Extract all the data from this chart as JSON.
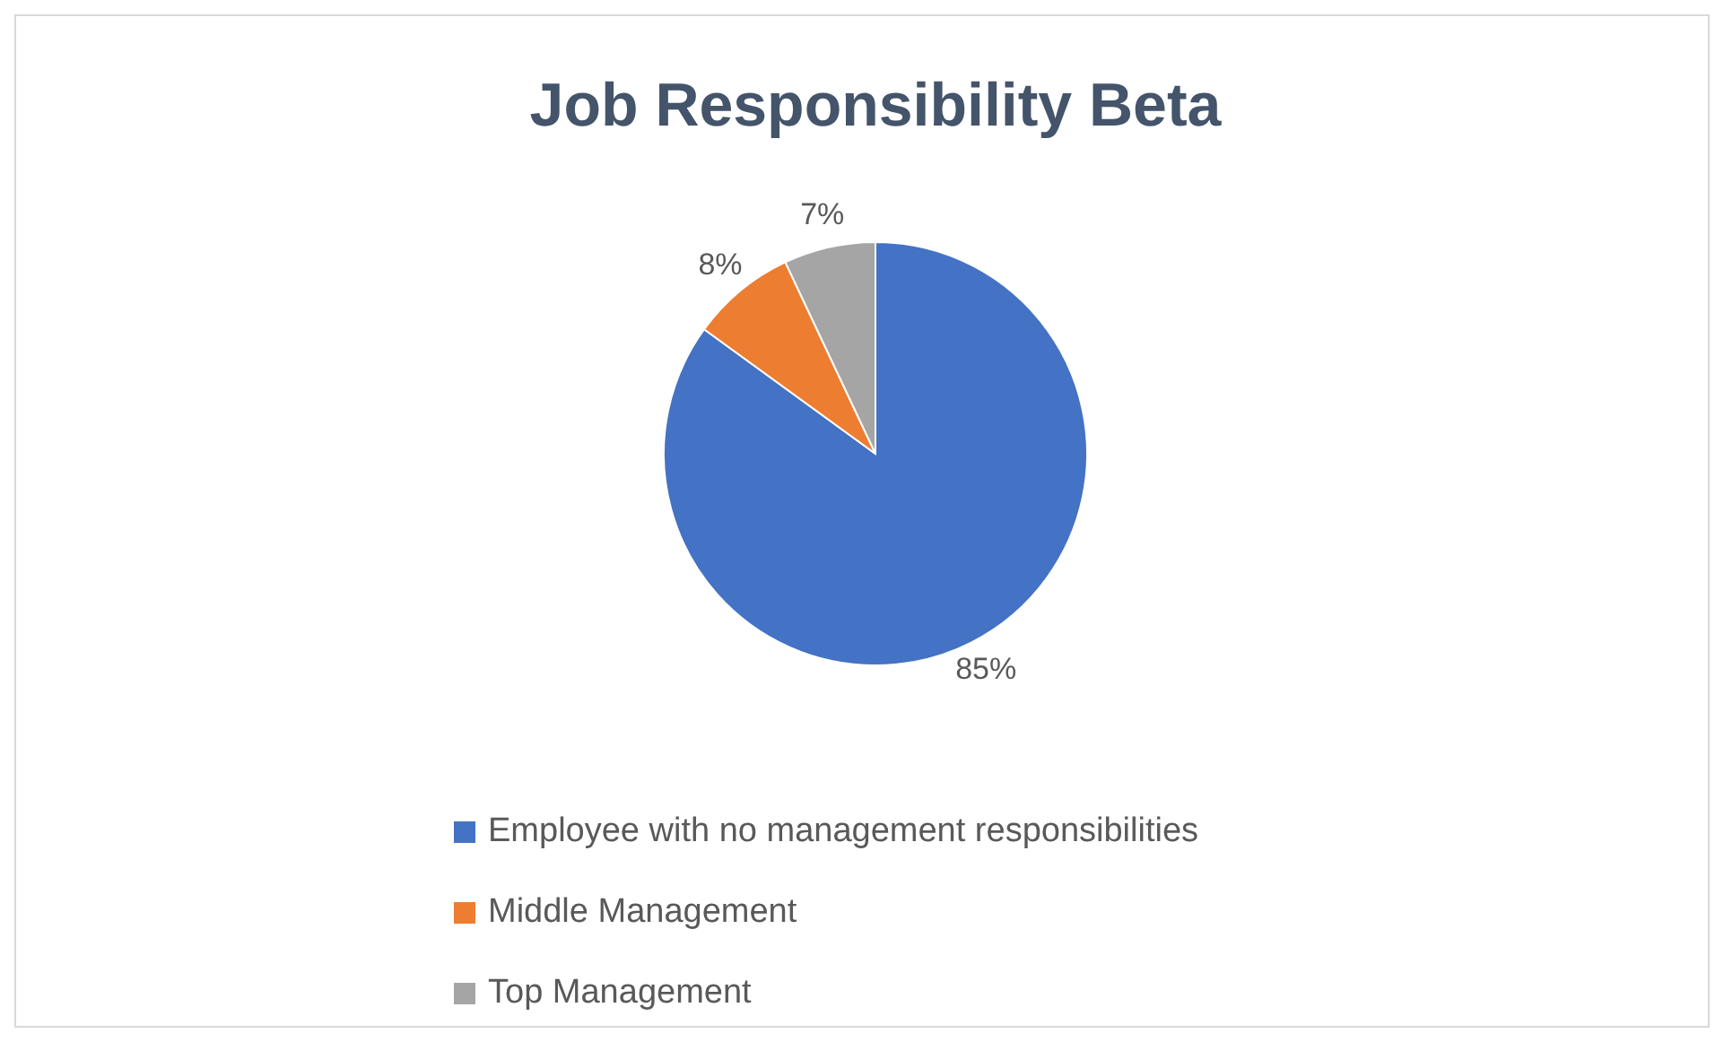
{
  "chart_data": {
    "type": "pie",
    "title": "Job Responsibility Beta",
    "categories": [
      "Employee with no management responsibilities",
      "Middle Management",
      "Top Management"
    ],
    "values": [
      85,
      8,
      7
    ],
    "colors": [
      "#4472c4",
      "#ed7d31",
      "#a5a5a5"
    ],
    "value_labels": [
      "85%",
      "8%",
      "7%"
    ],
    "legend": "bottom"
  }
}
